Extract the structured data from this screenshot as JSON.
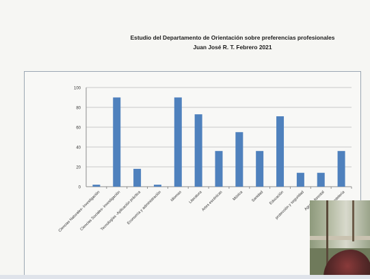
{
  "chart_data": {
    "type": "bar",
    "title": "Estudio del Departamento de Orientación sobre preferencias profesionales",
    "subtitle": "Juan José R. T. Febrero 2021",
    "xlabel": "",
    "ylabel": "",
    "ylim": [
      0,
      100
    ],
    "yticks": [
      0,
      20,
      40,
      60,
      80,
      100
    ],
    "grid": true,
    "legend": "none",
    "bar_color": "#4f81bd",
    "categories": [
      "Ciencias Naturales- investigación",
      "Ciencias Sociales- investigación",
      "Tecnologías -Aplicación práctica",
      "Economía y administración",
      "Idiomas",
      "Literatura",
      "Artes escénicas",
      "Música",
      "Sanidad",
      "Educación",
      "protección y seguridad",
      "Agrario-forestal",
      "Hostelería"
    ],
    "values": [
      2,
      90,
      18,
      2,
      90,
      73,
      36,
      55,
      36,
      71,
      14,
      14,
      36
    ]
  },
  "photo": {
    "icon": "webcam-video-thumbnail"
  }
}
